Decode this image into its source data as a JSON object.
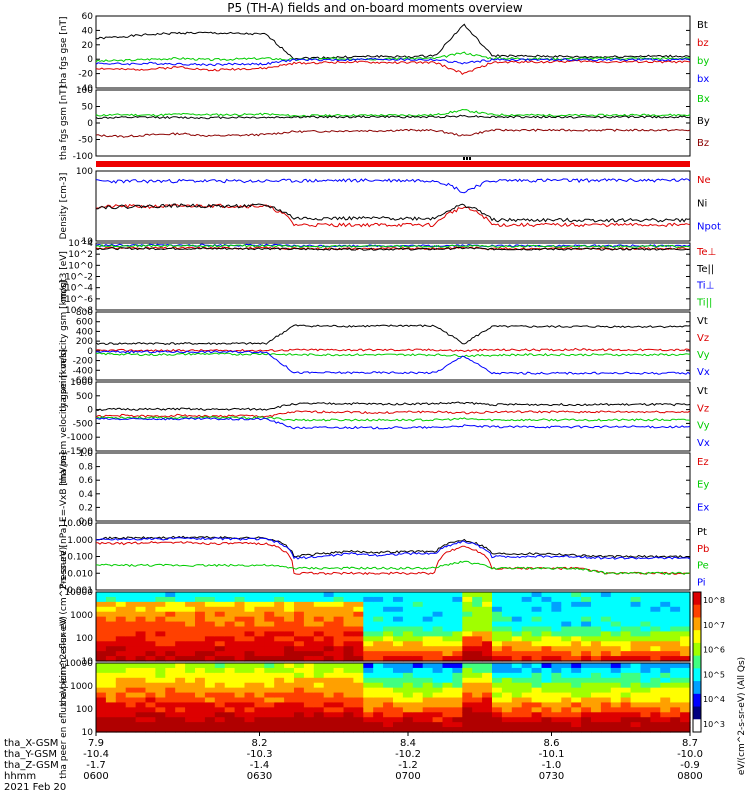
{
  "title": "P5 (TH-A) fields and on-board moments overview",
  "date_label": "2021 Feb 20",
  "ephemeris": {
    "row_labels": [
      "tha_X-GSM",
      "tha_Y-GSM",
      "tha_Z-GSM",
      "hhmm"
    ],
    "columns": [
      [
        "7.9",
        "-10.4",
        "-1.7",
        "0600"
      ],
      [
        "8.2",
        "-10.3",
        "-1.4",
        "0630"
      ],
      [
        "8.4",
        "-10.2",
        "-1.2",
        "0700"
      ],
      [
        "8.6",
        "-10.1",
        "-1.0",
        "0730"
      ],
      [
        "8.7",
        "-10.0",
        "-0.9",
        "0800"
      ]
    ]
  },
  "colorbar": {
    "label": "eV/(cm^2-s-sr-eV) (All Qs)",
    "ticks": [
      "10^8",
      "10^7",
      "10^6",
      "10^5",
      "10^4",
      "10^3"
    ]
  },
  "chart_data": [
    {
      "type": "line",
      "id": "fgs_gse",
      "ylabel": "tha fgs gse [nT]",
      "yticks": [
        "60",
        "40",
        "20",
        "0",
        "-20",
        "-40"
      ],
      "ylim": [
        -40,
        62
      ],
      "series": [
        {
          "name": "Bt",
          "color": "#000000",
          "values": [
            30,
            33,
            36,
            38,
            38,
            37,
            36,
            2,
            3,
            4,
            5,
            4,
            6,
            50,
            6,
            5,
            5,
            4,
            4,
            5,
            5,
            5
          ]
        },
        {
          "name": "bz",
          "color": "#dd0000",
          "values": [
            -12,
            -14,
            -13,
            -10,
            -15,
            -13,
            -12,
            -5,
            -4,
            -3,
            -4,
            -4,
            -4,
            -20,
            -4,
            -3,
            -3,
            -2,
            -3,
            -3,
            -3,
            -3
          ]
        },
        {
          "name": "by",
          "color": "#00cc00",
          "values": [
            -2,
            -1,
            1,
            2,
            0,
            1,
            2,
            0,
            1,
            2,
            1,
            2,
            2,
            10,
            2,
            2,
            1,
            2,
            2,
            2,
            2,
            2
          ]
        },
        {
          "name": "bx",
          "color": "#0000ff",
          "values": [
            -5,
            -6,
            -5,
            -6,
            -7,
            -6,
            -6,
            0,
            0,
            0,
            1,
            0,
            0,
            -5,
            0,
            0,
            0,
            0,
            0,
            0,
            0,
            0
          ]
        }
      ]
    },
    {
      "type": "line",
      "id": "fgs_gsm",
      "ylabel": "tha fgs gsm [nT]",
      "yticks": [
        "100",
        "50",
        "0",
        "-50",
        "-100"
      ],
      "ylim": [
        -130,
        100
      ],
      "series": [
        {
          "name": "Bx",
          "color": "#00cc00",
          "values": [
            12,
            14,
            12,
            16,
            14,
            14,
            16,
            10,
            11,
            12,
            12,
            12,
            13,
            30,
            14,
            13,
            12,
            12,
            12,
            13,
            13,
            13
          ]
        },
        {
          "name": "By",
          "color": "#000000",
          "values": [
            3,
            4,
            5,
            4,
            3,
            5,
            4,
            6,
            6,
            6,
            7,
            6,
            6,
            10,
            6,
            6,
            6,
            5,
            6,
            6,
            6,
            6
          ]
        },
        {
          "name": "Bz",
          "color": "#8b0000",
          "values": [
            -58,
            -62,
            -56,
            -52,
            -60,
            -58,
            -55,
            -45,
            -44,
            -42,
            -42,
            -40,
            -41,
            -60,
            -40,
            -40,
            -40,
            -40,
            -40,
            -40,
            -40,
            -40
          ]
        }
      ]
    },
    {
      "type": "line",
      "id": "density",
      "ylabel": "Density [cm-3]",
      "yticks": [
        "100",
        "10"
      ],
      "ylim": [
        1,
        400
      ],
      "log": true,
      "series": [
        {
          "name": "Ne",
          "color": "#dd0000",
          "values": [
            18,
            20,
            19,
            20,
            21,
            20,
            20,
            4,
            4,
            4,
            4,
            4,
            4,
            18,
            4,
            4,
            4,
            4,
            4,
            4,
            4,
            4
          ]
        },
        {
          "name": "Ni",
          "color": "#000000",
          "values": [
            18,
            19,
            20,
            21,
            20,
            20,
            21,
            7,
            7,
            7,
            7,
            7,
            7,
            22,
            6,
            6,
            6,
            6,
            6,
            6,
            6,
            6
          ]
        },
        {
          "name": "Npot",
          "color": "#0000ff",
          "values": [
            170,
            165,
            168,
            172,
            170,
            168,
            170,
            175,
            175,
            180,
            180,
            180,
            180,
            60,
            175,
            180,
            180,
            180,
            182,
            182,
            182,
            182
          ]
        }
      ]
    },
    {
      "type": "line",
      "id": "temperature",
      "ylabel": "moqt3 [eV]",
      "yticks": [
        "10^4",
        "10^2",
        "10^0",
        "10^-2",
        "10^-4",
        "10^-6",
        "10^-8"
      ],
      "ylim": [
        -8,
        4
      ],
      "series": [
        {
          "name": "Te⊥",
          "color": "#dd0000",
          "values": [
            3.1,
            3.1,
            3.1,
            3.1,
            3.1,
            3.1,
            3.1,
            3.0,
            3.0,
            3.0,
            3.0,
            3.0,
            3.0,
            3.2,
            3.0,
            3.0,
            3.0,
            3.0,
            3.0,
            3.0,
            3.0,
            3.0
          ]
        },
        {
          "name": "Te||",
          "color": "#000000",
          "values": [
            3.0,
            3.0,
            3.0,
            3.0,
            3.0,
            3.0,
            3.0,
            2.9,
            2.9,
            2.9,
            2.9,
            2.9,
            2.9,
            3.1,
            2.9,
            2.9,
            2.9,
            2.9,
            2.9,
            2.9,
            2.9,
            2.9
          ]
        },
        {
          "name": "Ti⊥",
          "color": "#0000ff",
          "values": [
            3.6,
            3.6,
            3.6,
            3.6,
            3.6,
            3.6,
            3.6,
            3.5,
            3.5,
            3.5,
            3.5,
            3.5,
            3.5,
            3.6,
            3.5,
            3.5,
            3.5,
            3.5,
            3.5,
            3.5,
            3.5,
            3.5
          ]
        },
        {
          "name": "Ti||",
          "color": "#00cc00",
          "values": [
            3.5,
            3.5,
            3.5,
            3.5,
            3.5,
            3.5,
            3.5,
            3.4,
            3.4,
            3.4,
            3.4,
            3.4,
            3.4,
            3.5,
            3.4,
            3.4,
            3.4,
            3.4,
            3.4,
            3.4,
            3.4,
            3.4
          ]
        }
      ]
    },
    {
      "type": "line",
      "id": "peim_velocity",
      "ylabel": "tha peim velocity gsm [km/s]",
      "yticks": [
        "800",
        "600",
        "400",
        "200",
        "0",
        "-200",
        "-400",
        "-600"
      ],
      "ylim": [
        -600,
        800
      ],
      "series": [
        {
          "name": "Vt",
          "color": "#000000",
          "values": [
            150,
            150,
            155,
            150,
            150,
            150,
            150,
            520,
            510,
            510,
            510,
            520,
            510,
            150,
            500,
            500,
            500,
            500,
            500,
            500,
            500,
            500
          ]
        },
        {
          "name": "Vz",
          "color": "#dd0000",
          "values": [
            5,
            10,
            5,
            10,
            5,
            10,
            5,
            20,
            20,
            20,
            20,
            20,
            20,
            0,
            20,
            20,
            20,
            30,
            20,
            20,
            20,
            20
          ]
        },
        {
          "name": "Vy",
          "color": "#00cc00",
          "values": [
            -60,
            -70,
            -80,
            -70,
            -60,
            -70,
            -60,
            -80,
            -80,
            -80,
            -80,
            -80,
            -80,
            -100,
            -90,
            -80,
            -80,
            -80,
            -80,
            -80,
            -80,
            -80
          ]
        },
        {
          "name": "Vx",
          "color": "#0000ff",
          "values": [
            -20,
            -20,
            -20,
            -20,
            -20,
            -20,
            -20,
            -450,
            -450,
            -450,
            -450,
            -450,
            -450,
            -100,
            -460,
            -460,
            -460,
            -460,
            -460,
            -460,
            -460,
            -460
          ]
        }
      ]
    },
    {
      "type": "line",
      "id": "peem_velocity",
      "ylabel": "tha peem velocity gsm [km/s]",
      "yticks": [
        "1000",
        "500",
        "0",
        "-500",
        "-1000",
        "-1500"
      ],
      "ylim": [
        -1500,
        1500
      ],
      "series": [
        {
          "name": "Vt",
          "color": "#000000",
          "values": [
            300,
            320,
            310,
            330,
            300,
            320,
            310,
            550,
            560,
            560,
            540,
            550,
            560,
            600,
            520,
            520,
            520,
            520,
            520,
            520,
            520,
            520
          ]
        },
        {
          "name": "Vz",
          "color": "#dd0000",
          "values": [
            0,
            50,
            0,
            60,
            0,
            40,
            0,
            200,
            200,
            200,
            150,
            200,
            200,
            150,
            200,
            200,
            200,
            200,
            200,
            200,
            200,
            200
          ]
        },
        {
          "name": "Vy",
          "color": "#00cc00",
          "values": [
            -50,
            -40,
            -60,
            -50,
            -40,
            -60,
            -50,
            -150,
            -150,
            -150,
            -150,
            -150,
            -150,
            -100,
            -150,
            -150,
            -150,
            -150,
            -150,
            -150,
            -150,
            -150
          ]
        },
        {
          "name": "Vx",
          "color": "#0000ff",
          "values": [
            -100,
            -120,
            -100,
            -110,
            -100,
            -120,
            -100,
            -500,
            -480,
            -480,
            -500,
            -480,
            -480,
            -400,
            -450,
            -450,
            -450,
            -450,
            -450,
            -450,
            -450,
            -450
          ]
        }
      ]
    },
    {
      "type": "line",
      "id": "e_field",
      "ylabel": "E=-VxB [mV/m]",
      "yticks": [
        "1.0",
        "0.8",
        "0.6",
        "0.4",
        "0.2",
        "0.0"
      ],
      "ylim": [
        0,
        1
      ],
      "series": [
        {
          "name": "Ez",
          "color": "#dd0000",
          "values": []
        },
        {
          "name": "Ey",
          "color": "#00cc00",
          "values": []
        },
        {
          "name": "Ex",
          "color": "#0000ff",
          "values": []
        }
      ]
    },
    {
      "type": "line",
      "id": "pressure",
      "ylabel": "Pressure [nPa]",
      "yticks": [
        "10.000",
        "1.000",
        "0.100",
        "0.010",
        "0.001"
      ],
      "ylim": [
        0.001,
        10
      ],
      "log": true,
      "series": [
        {
          "name": "Pt",
          "color": "#000000",
          "values": [
            1.2,
            1.3,
            1.3,
            1.4,
            1.4,
            1.3,
            1.3,
            0.1,
            0.15,
            0.2,
            0.18,
            0.2,
            0.2,
            1.0,
            0.15,
            0.15,
            0.15,
            0.12,
            0.1,
            0.1,
            0.1,
            0.1
          ]
        },
        {
          "name": "Pb",
          "color": "#dd0000",
          "values": [
            0.6,
            0.6,
            0.7,
            0.7,
            0.6,
            0.6,
            0.6,
            0.01,
            0.01,
            0.01,
            0.01,
            0.01,
            0.01,
            0.4,
            0.02,
            0.02,
            0.02,
            0.02,
            0.01,
            0.01,
            0.01,
            0.01
          ]
        },
        {
          "name": "Pe",
          "color": "#00cc00",
          "values": [
            0.03,
            0.03,
            0.03,
            0.03,
            0.03,
            0.03,
            0.03,
            0.02,
            0.02,
            0.02,
            0.02,
            0.02,
            0.02,
            0.05,
            0.02,
            0.02,
            0.02,
            0.02,
            0.01,
            0.01,
            0.01,
            0.01
          ]
        },
        {
          "name": "Pi",
          "color": "#0000ff",
          "values": [
            1.0,
            1.1,
            1.1,
            1.2,
            1.2,
            1.1,
            1.1,
            0.08,
            0.1,
            0.15,
            0.12,
            0.15,
            0.15,
            0.8,
            0.1,
            0.1,
            0.1,
            0.1,
            0.08,
            0.08,
            0.08,
            0.08
          ]
        }
      ]
    },
    {
      "type": "heatmap",
      "id": "peir_spec",
      "ylabel": "tha peir en eflux eV (cm^2-s-sr-eV)",
      "yticks": [
        "10000",
        "1000",
        "100",
        "10"
      ]
    },
    {
      "type": "heatmap",
      "id": "peer_spec",
      "ylabel": "tha peer en eflux eV (cm^2-s-sr-eV)",
      "yticks": [
        "10000",
        "1000",
        "100",
        "10"
      ]
    }
  ]
}
